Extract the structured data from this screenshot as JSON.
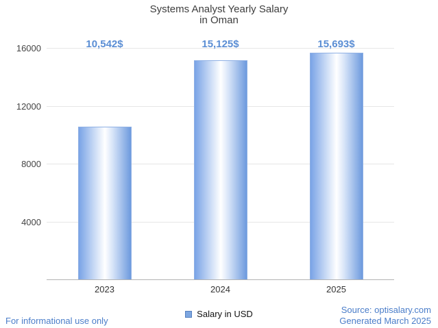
{
  "title": {
    "line1": "Systems Analyst Yearly Salary",
    "line2": "in Oman"
  },
  "chart_data": {
    "type": "bar",
    "title": "Systems Analyst Yearly Salary in Oman",
    "categories": [
      "2023",
      "2024",
      "2025"
    ],
    "values": [
      10542,
      15125,
      15693
    ],
    "value_labels": [
      "10,542$",
      "15,125$",
      "15,693$"
    ],
    "xlabel": "",
    "ylabel": "",
    "ylim": [
      0,
      16000
    ],
    "yticks": [
      4000,
      8000,
      12000,
      16000
    ],
    "grid": true,
    "legend": [
      "Salary in USD"
    ],
    "legend_position": "bottom",
    "bar_color": "#7da6e0"
  },
  "legend": {
    "label": "Salary in USD"
  },
  "footer": {
    "left": "For informational use only",
    "source": "Source: optisalary.com",
    "generated": "Generated March 2025"
  },
  "colors": {
    "accent_label": "#5b8ed4",
    "footer_text": "#4a7dc9",
    "bar": "#7da6e0",
    "gridline": "#e6e6e6"
  }
}
